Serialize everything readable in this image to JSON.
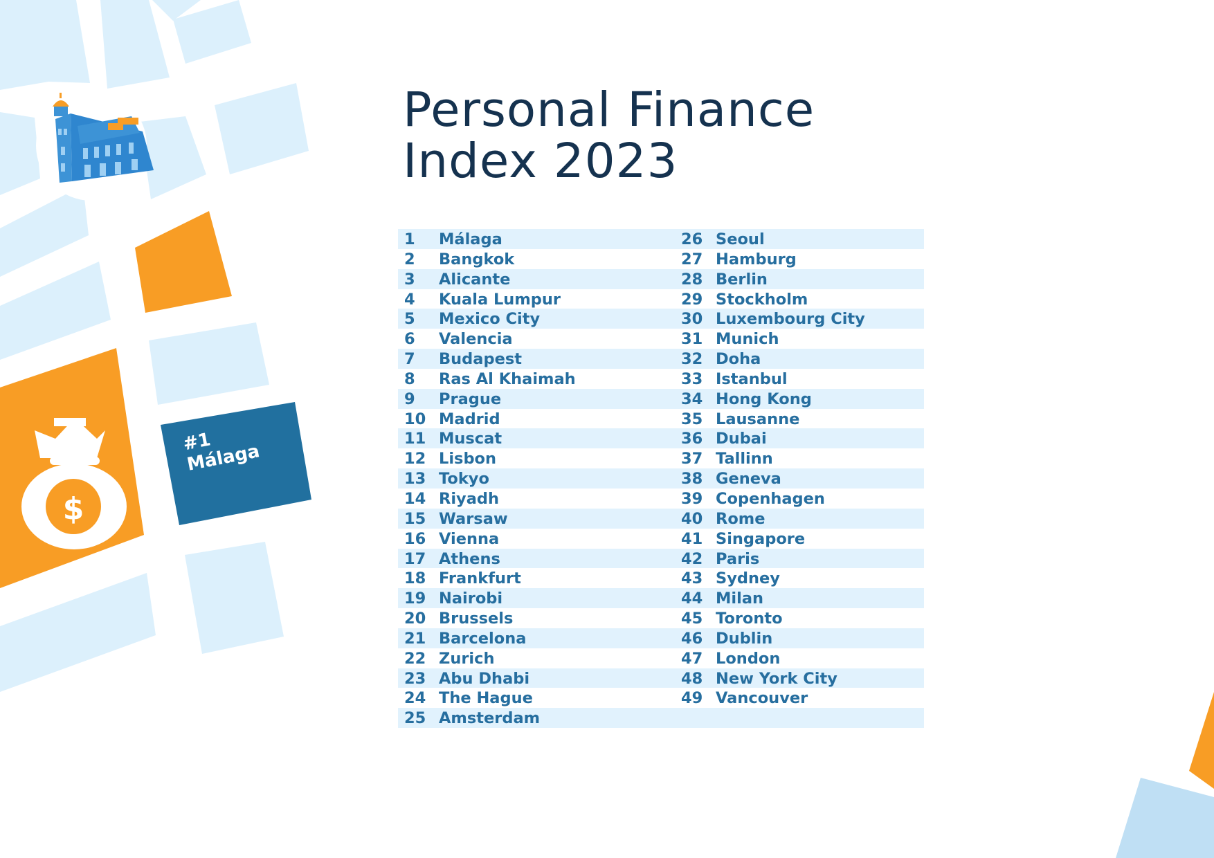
{
  "title": {
    "line1": "Personal Finance",
    "line2": "Index 2023"
  },
  "badge": {
    "rank": "#1",
    "city": "Málaga"
  },
  "money_bag_symbol": "$",
  "colors": {
    "title": "#15324f",
    "text": "#266e9f",
    "stripe": "#e1f2fd",
    "map_block": "#dcf0fc",
    "orange": "#f89d25",
    "badge": "#21709f"
  },
  "ranking": [
    {
      "rank": "1",
      "city": "Málaga"
    },
    {
      "rank": "2",
      "city": "Bangkok"
    },
    {
      "rank": "3",
      "city": "Alicante"
    },
    {
      "rank": "4",
      "city": "Kuala Lumpur"
    },
    {
      "rank": "5",
      "city": "Mexico City"
    },
    {
      "rank": "6",
      "city": "Valencia"
    },
    {
      "rank": "7",
      "city": "Budapest"
    },
    {
      "rank": "8",
      "city": "Ras Al Khaimah"
    },
    {
      "rank": "9",
      "city": "Prague"
    },
    {
      "rank": "10",
      "city": "Madrid"
    },
    {
      "rank": "11",
      "city": "Muscat"
    },
    {
      "rank": "12",
      "city": "Lisbon"
    },
    {
      "rank": "13",
      "city": "Tokyo"
    },
    {
      "rank": "14",
      "city": "Riyadh"
    },
    {
      "rank": "15",
      "city": "Warsaw"
    },
    {
      "rank": "16",
      "city": "Vienna"
    },
    {
      "rank": "17",
      "city": "Athens"
    },
    {
      "rank": "18",
      "city": "Frankfurt"
    },
    {
      "rank": "19",
      "city": "Nairobi"
    },
    {
      "rank": "20",
      "city": "Brussels"
    },
    {
      "rank": "21",
      "city": "Barcelona"
    },
    {
      "rank": "22",
      "city": "Zurich"
    },
    {
      "rank": "23",
      "city": "Abu Dhabi"
    },
    {
      "rank": "24",
      "city": "The Hague"
    },
    {
      "rank": "25",
      "city": "Amsterdam"
    },
    {
      "rank": "26",
      "city": "Seoul"
    },
    {
      "rank": "27",
      "city": "Hamburg"
    },
    {
      "rank": "28",
      "city": "Berlin"
    },
    {
      "rank": "29",
      "city": "Stockholm"
    },
    {
      "rank": "30",
      "city": "Luxembourg City"
    },
    {
      "rank": "31",
      "city": "Munich"
    },
    {
      "rank": "32",
      "city": "Doha"
    },
    {
      "rank": "33",
      "city": "Istanbul"
    },
    {
      "rank": "34",
      "city": "Hong Kong"
    },
    {
      "rank": "35",
      "city": "Lausanne"
    },
    {
      "rank": "36",
      "city": "Dubai"
    },
    {
      "rank": "37",
      "city": "Tallinn"
    },
    {
      "rank": "38",
      "city": "Geneva"
    },
    {
      "rank": "39",
      "city": "Copenhagen"
    },
    {
      "rank": "40",
      "city": "Rome"
    },
    {
      "rank": "41",
      "city": "Singapore"
    },
    {
      "rank": "42",
      "city": "Paris"
    },
    {
      "rank": "43",
      "city": "Sydney"
    },
    {
      "rank": "44",
      "city": "Milan"
    },
    {
      "rank": "45",
      "city": "Toronto"
    },
    {
      "rank": "46",
      "city": "Dublin"
    },
    {
      "rank": "47",
      "city": "London"
    },
    {
      "rank": "48",
      "city": "New York City"
    },
    {
      "rank": "49",
      "city": "Vancouver"
    }
  ]
}
